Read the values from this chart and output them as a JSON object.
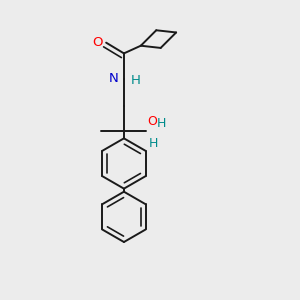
{
  "bg_color": "#ececec",
  "bond_color": "#1a1a1a",
  "bond_width": 1.4,
  "fig_size": [
    3.0,
    3.0
  ],
  "dpi": 100,
  "xlim": [
    0.1,
    0.9
  ],
  "ylim": [
    0.02,
    0.98
  ],
  "carbonyl_O_color": "#ff0000",
  "N_color": "#0000cc",
  "H_color": "#008b8b",
  "O_OH_color": "#ff0000",
  "fontsize": 9.5
}
